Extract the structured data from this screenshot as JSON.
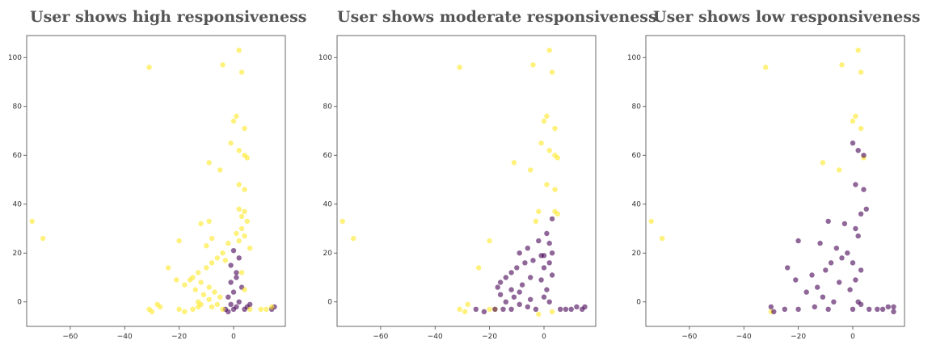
{
  "colors": {
    "positive": "#fde725",
    "negative": "#440154"
  },
  "chart_data": [
    {
      "type": "scatter",
      "title": "User shows high responsiveness",
      "xlim": [
        -76,
        19
      ],
      "ylim": [
        -10,
        109
      ],
      "xticks": [
        -60,
        -40,
        -20,
        0
      ],
      "yticks": [
        0,
        20,
        40,
        60,
        80,
        100
      ],
      "grid": false,
      "highlight": "positive",
      "points": {
        "positive": [
          [
            -31,
            96
          ],
          [
            -4,
            97
          ],
          [
            2,
            103
          ],
          [
            3,
            94
          ],
          [
            -74,
            33
          ],
          [
            -70,
            26
          ],
          [
            1,
            76
          ],
          [
            0,
            74
          ],
          [
            4,
            71
          ],
          [
            -1,
            65
          ],
          [
            2,
            62
          ],
          [
            4,
            60
          ],
          [
            5,
            59
          ],
          [
            -9,
            57
          ],
          [
            -5,
            54
          ],
          [
            2,
            48
          ],
          [
            4,
            46
          ],
          [
            -9,
            33
          ],
          [
            -20,
            25
          ],
          [
            -12,
            32
          ],
          [
            -8,
            26
          ],
          [
            -10,
            23
          ],
          [
            -24,
            14
          ],
          [
            -21,
            9
          ],
          [
            -27,
            -2
          ],
          [
            -30,
            -4
          ],
          [
            -31,
            -3
          ],
          [
            -28,
            -1
          ],
          [
            -20,
            -3
          ],
          [
            -18,
            -4
          ],
          [
            -15,
            -3
          ],
          [
            -13,
            -2
          ],
          [
            -12,
            -1
          ],
          [
            2,
            38
          ],
          [
            4,
            37
          ],
          [
            3,
            35
          ],
          [
            5,
            33
          ],
          [
            3,
            30
          ],
          [
            1,
            28
          ],
          [
            4,
            27
          ],
          [
            2,
            25
          ],
          [
            -2,
            24
          ],
          [
            6,
            22
          ],
          [
            -4,
            20
          ],
          [
            -6,
            18
          ],
          [
            -3,
            17
          ],
          [
            -8,
            16
          ],
          [
            -10,
            14
          ],
          [
            -13,
            12
          ],
          [
            -15,
            10
          ],
          [
            -16,
            9
          ],
          [
            -12,
            8
          ],
          [
            -18,
            7
          ],
          [
            -9,
            6
          ],
          [
            -14,
            5
          ],
          [
            -7,
            4
          ],
          [
            -11,
            3
          ],
          [
            -5,
            2
          ],
          [
            -9,
            1
          ],
          [
            -13,
            0
          ],
          [
            -6,
            -1
          ],
          [
            -8,
            -2
          ],
          [
            -4,
            -3
          ],
          [
            3,
            12
          ],
          [
            4,
            5
          ],
          [
            6,
            -3
          ],
          [
            10,
            -3
          ],
          [
            12,
            -3
          ],
          [
            14,
            -2
          ]
        ],
        "negative": [
          [
            0,
            -3
          ],
          [
            1,
            -2
          ],
          [
            -1,
            -1
          ],
          [
            2,
            0
          ],
          [
            -2,
            2
          ],
          [
            0,
            4
          ],
          [
            3,
            6
          ],
          [
            1,
            10
          ],
          [
            -1,
            15
          ],
          [
            2,
            18
          ],
          [
            0,
            21
          ],
          [
            -3,
            -3
          ],
          [
            -2,
            -4
          ],
          [
            4,
            -3
          ],
          [
            5,
            -2
          ],
          [
            6,
            -1
          ],
          [
            14,
            -3
          ],
          [
            15,
            -2
          ],
          [
            -1,
            8
          ],
          [
            1,
            12
          ]
        ]
      }
    },
    {
      "type": "scatter",
      "title": "User shows moderate responsiveness",
      "xlim": [
        -76,
        19
      ],
      "ylim": [
        -10,
        109
      ],
      "xticks": [
        -60,
        -40,
        -20,
        0
      ],
      "yticks": [
        0,
        20,
        40,
        60,
        80,
        100
      ],
      "grid": false,
      "highlight": "negative",
      "points": {
        "positive": [
          [
            -31,
            96
          ],
          [
            -4,
            97
          ],
          [
            2,
            103
          ],
          [
            3,
            94
          ],
          [
            -74,
            33
          ],
          [
            -70,
            26
          ],
          [
            1,
            76
          ],
          [
            0,
            74
          ],
          [
            4,
            71
          ],
          [
            -1,
            65
          ],
          [
            2,
            62
          ],
          [
            4,
            60
          ],
          [
            5,
            59
          ],
          [
            -11,
            57
          ],
          [
            -5,
            54
          ],
          [
            1,
            48
          ],
          [
            4,
            46
          ],
          [
            -20,
            25
          ],
          [
            -24,
            14
          ],
          [
            -29,
            -4
          ],
          [
            -31,
            -3
          ],
          [
            -28,
            -1
          ],
          [
            -20,
            -3
          ],
          [
            -18,
            -3
          ],
          [
            -2,
            37
          ],
          [
            4,
            37
          ],
          [
            5,
            36
          ],
          [
            -3,
            33
          ],
          [
            3,
            -4
          ],
          [
            -2,
            -5
          ]
        ],
        "negative": [
          [
            3,
            34
          ],
          [
            1,
            28
          ],
          [
            -2,
            25
          ],
          [
            2,
            24
          ],
          [
            -6,
            22
          ],
          [
            -9,
            20
          ],
          [
            0,
            19
          ],
          [
            -4,
            17
          ],
          [
            -7,
            16
          ],
          [
            -10,
            14
          ],
          [
            -12,
            12
          ],
          [
            -14,
            10
          ],
          [
            -16,
            8
          ],
          [
            -8,
            7
          ],
          [
            -17,
            6
          ],
          [
            -12,
            5
          ],
          [
            -9,
            4
          ],
          [
            -16,
            3
          ],
          [
            -11,
            2
          ],
          [
            -5,
            1
          ],
          [
            -14,
            0
          ],
          [
            -9,
            -1
          ],
          [
            -6,
            -2
          ],
          [
            -12,
            -3
          ],
          [
            -15,
            -3
          ],
          [
            -18,
            -3
          ],
          [
            -25,
            -3
          ],
          [
            -22,
            -4
          ],
          [
            2,
            0
          ],
          [
            0,
            2
          ],
          [
            1,
            5
          ],
          [
            -1,
            9
          ],
          [
            3,
            11
          ],
          [
            0,
            14
          ],
          [
            2,
            16
          ],
          [
            -3,
            -3
          ],
          [
            6,
            -3
          ],
          [
            8,
            -3
          ],
          [
            10,
            -3
          ],
          [
            12,
            -2
          ],
          [
            14,
            -3
          ],
          [
            15,
            -2
          ],
          [
            -5,
            10
          ],
          [
            -1,
            19
          ],
          [
            3,
            20
          ]
        ]
      }
    },
    {
      "type": "scatter",
      "title": "User shows low responsiveness",
      "xlim": [
        -76,
        19
      ],
      "ylim": [
        -10,
        109
      ],
      "xticks": [
        -60,
        -40,
        -20,
        0
      ],
      "yticks": [
        0,
        20,
        40,
        60,
        80,
        100
      ],
      "grid": false,
      "highlight": "negative",
      "points": {
        "positive": [
          [
            -32,
            96
          ],
          [
            -4,
            97
          ],
          [
            2,
            103
          ],
          [
            3,
            94
          ],
          [
            -74,
            33
          ],
          [
            -70,
            26
          ],
          [
            1,
            76
          ],
          [
            0,
            74
          ],
          [
            3,
            71
          ],
          [
            4,
            59
          ],
          [
            -11,
            57
          ],
          [
            -5,
            54
          ],
          [
            -30,
            -4
          ]
        ],
        "negative": [
          [
            0,
            65
          ],
          [
            2,
            62
          ],
          [
            4,
            60
          ],
          [
            1,
            48
          ],
          [
            4,
            46
          ],
          [
            5,
            38
          ],
          [
            3,
            36
          ],
          [
            -9,
            33
          ],
          [
            -3,
            32
          ],
          [
            1,
            30
          ],
          [
            -20,
            25
          ],
          [
            -12,
            24
          ],
          [
            -6,
            22
          ],
          [
            -24,
            14
          ],
          [
            -21,
            9
          ],
          [
            -15,
            11
          ],
          [
            -10,
            13
          ],
          [
            -8,
            16
          ],
          [
            -4,
            18
          ],
          [
            -13,
            6
          ],
          [
            -17,
            4
          ],
          [
            -11,
            2
          ],
          [
            -7,
            0
          ],
          [
            -14,
            -2
          ],
          [
            -9,
            -3
          ],
          [
            -20,
            -3
          ],
          [
            -25,
            -3
          ],
          [
            -29,
            -4
          ],
          [
            -30,
            -2
          ],
          [
            0,
            -3
          ],
          [
            2,
            0
          ],
          [
            -1,
            5
          ],
          [
            1,
            9
          ],
          [
            3,
            13
          ],
          [
            -2,
            20
          ],
          [
            2,
            27
          ],
          [
            6,
            -3
          ],
          [
            9,
            -3
          ],
          [
            11,
            -3
          ],
          [
            13,
            -2
          ],
          [
            15,
            -2
          ],
          [
            15,
            -4
          ],
          [
            -5,
            8
          ],
          [
            0,
            16
          ],
          [
            3,
            -1
          ]
        ]
      }
    }
  ]
}
